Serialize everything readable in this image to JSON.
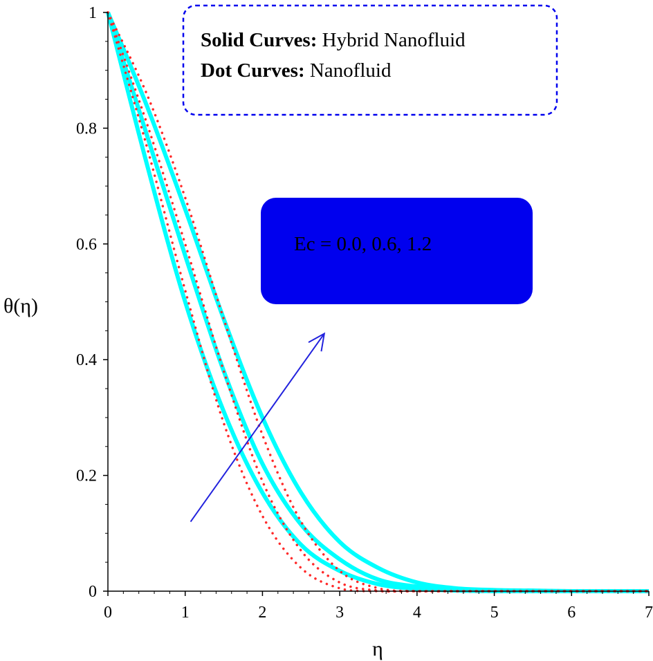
{
  "chart_data": {
    "type": "line",
    "xlabel": "η",
    "ylabel": "θ(η)",
    "xlim": [
      0,
      7
    ],
    "ylim": [
      0,
      1
    ],
    "x_ticks": [
      "0",
      "1",
      "2",
      "3",
      "4",
      "5",
      "6",
      "7"
    ],
    "y_ticks": [
      "0",
      "0.2",
      "0.4",
      "0.6",
      "0.8",
      "1"
    ],
    "grid": false,
    "legend": {
      "solid_label": "Solid Curves:",
      "solid_text": "Hybrid Nanofluid",
      "dot_label": "Dot Curves:",
      "dot_text": "Nanofluid"
    },
    "annotation": "Ec = 0.0, 0.6, 1.2",
    "colors": {
      "solid": "#00ffff",
      "dot": "#ff2a2a",
      "accent": "#0000ee",
      "arrow": "#2222dd"
    },
    "x": [
      0,
      0.5,
      1,
      1.5,
      2,
      2.5,
      3,
      3.5,
      4,
      4.5,
      5,
      5.5,
      6,
      6.5,
      7
    ],
    "series": [
      {
        "style": "solid",
        "values": [
          1.0,
          0.74,
          0.5,
          0.31,
          0.17,
          0.08,
          0.035,
          0.012,
          0.004,
          0.001,
          0,
          0,
          0,
          0,
          0
        ]
      },
      {
        "style": "solid",
        "values": [
          1.0,
          0.79,
          0.58,
          0.38,
          0.22,
          0.115,
          0.055,
          0.02,
          0.008,
          0.003,
          0.001,
          0,
          0,
          0,
          0
        ]
      },
      {
        "style": "solid",
        "values": [
          1.0,
          0.84,
          0.66,
          0.47,
          0.3,
          0.17,
          0.085,
          0.04,
          0.015,
          0.005,
          0.002,
          0.001,
          0,
          0,
          0
        ]
      },
      {
        "style": "dot",
        "values": [
          1.0,
          0.77,
          0.52,
          0.29,
          0.13,
          0.04,
          0.005,
          0,
          0,
          0,
          0,
          0,
          0,
          0,
          0
        ]
      },
      {
        "style": "dot",
        "values": [
          1.0,
          0.81,
          0.6,
          0.38,
          0.19,
          0.07,
          0.015,
          0.001,
          0,
          0,
          0,
          0,
          0,
          0,
          0
        ]
      },
      {
        "style": "dot",
        "values": [
          1.0,
          0.86,
          0.68,
          0.47,
          0.27,
          0.12,
          0.035,
          0.005,
          0,
          0,
          0,
          0,
          0,
          0,
          0
        ]
      }
    ],
    "arrow": {
      "from": [
        1.07,
        0.12
      ],
      "to": [
        2.8,
        0.445
      ]
    }
  }
}
